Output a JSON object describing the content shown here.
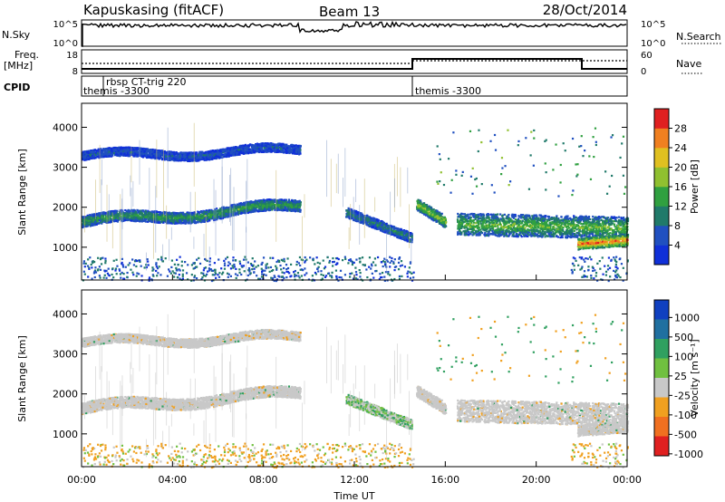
{
  "header": {
    "site": "Kapuskasing (fitACF)",
    "beam": "Beam 13",
    "date": "28/Oct/2014"
  },
  "strips": {
    "nsky": {
      "label": "N.Sky",
      "tick_top": "10^5",
      "tick_bottom": "10^0",
      "right_label": "N.Search",
      "right_tick_top": "10^5",
      "right_tick_bottom": "10^0"
    },
    "freq": {
      "label_line1": "Freq.",
      "label_line2": "[MHz]",
      "tick_top": "18",
      "tick_bottom": "8",
      "right_label": "Nave",
      "right_tick_top": "60",
      "right_tick_bottom": "0"
    },
    "cpid": {
      "label": "CPID",
      "segments": [
        {
          "name": "themis -3300",
          "start": 0.0,
          "end": 14.6
        },
        {
          "name": "rbsp CT-trig 220",
          "start": 0.9,
          "end": 1.0
        },
        {
          "name": "themis -3300",
          "start": 14.6,
          "end": 24.0
        }
      ]
    }
  },
  "chart_data": [
    {
      "type": "heatmap",
      "name": "power",
      "ylabel": "Slant Range [km]",
      "xlabel": "",
      "xlim": [
        0,
        24
      ],
      "ylim": [
        180,
        4600
      ],
      "yticks": [
        "1000",
        "2000",
        "3000",
        "4000"
      ],
      "colorbar": {
        "label": "Power [dB]",
        "range": [
          0,
          32
        ],
        "ticks": [
          "4",
          "8",
          "12",
          "16",
          "20",
          "24",
          "28"
        ],
        "colors": [
          "#1030d8",
          "#2050c0",
          "#207a6a",
          "#30a040",
          "#90c030",
          "#e0c020",
          "#f08020",
          "#e02020"
        ]
      },
      "bands": [
        {
          "t0": 0.0,
          "t1": 9.6,
          "r_start": 1650,
          "r_end": 2050,
          "width": 280,
          "power": 10
        },
        {
          "t0": 0.0,
          "t1": 9.6,
          "r_start": 3300,
          "r_end": 3450,
          "width": 220,
          "power": 5
        },
        {
          "t0": 11.6,
          "t1": 14.5,
          "r_start": 1900,
          "r_end": 1250,
          "width": 250,
          "power": 8
        },
        {
          "t0": 14.7,
          "t1": 16.0,
          "r_start": 2100,
          "r_end": 1650,
          "width": 300,
          "power": 14
        },
        {
          "t0": 16.5,
          "t1": 24.0,
          "r_start": 1600,
          "r_end": 1500,
          "width": 550,
          "power": 12
        },
        {
          "t0": 21.8,
          "t1": 24.0,
          "r_start": 1100,
          "r_end": 1200,
          "width": 280,
          "power": 21
        }
      ]
    },
    {
      "type": "heatmap",
      "name": "velocity",
      "ylabel": "Slant Range [km]",
      "xlabel": "Time UT",
      "xlim": [
        0,
        24
      ],
      "ylim": [
        180,
        4600
      ],
      "yticks": [
        "1000",
        "2000",
        "3000",
        "4000"
      ],
      "xticks": [
        "00:00",
        "04:00",
        "08:00",
        "12:00",
        "16:00",
        "20:00",
        "00:00"
      ],
      "colorbar": {
        "label": "Velocity [m s⁻¹]",
        "ticks": [
          "1000",
          "500",
          "100",
          "25",
          "-25",
          "-100",
          "-500",
          "-1000"
        ],
        "colors": [
          "#1040c0",
          "#2070a0",
          "#30a060",
          "#70c040",
          "#c8c8c8",
          "#f0a020",
          "#f07020",
          "#e02020"
        ]
      }
    }
  ]
}
